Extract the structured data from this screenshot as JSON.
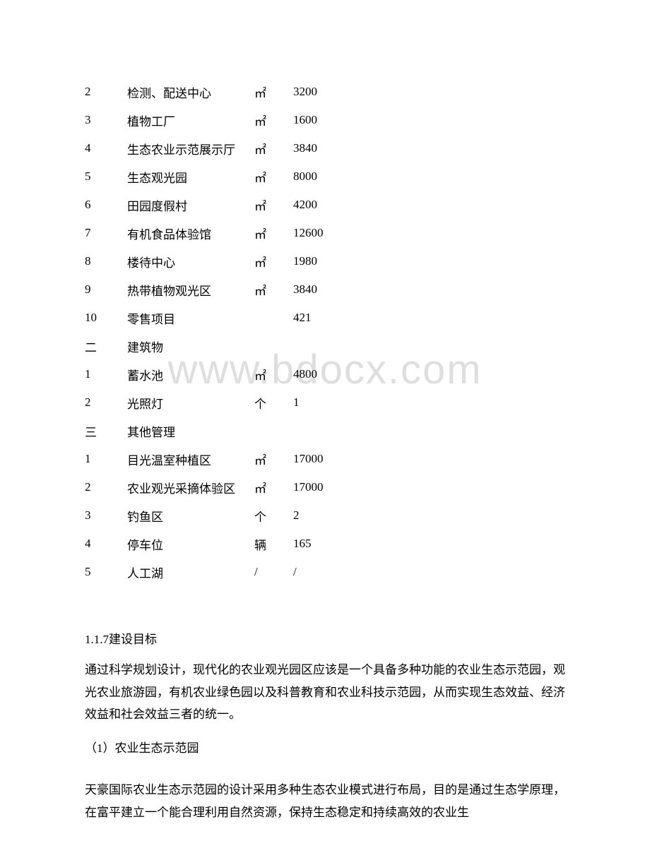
{
  "watermark": "www.bdocx.com",
  "table": {
    "rows": [
      {
        "num": "2",
        "name": "检测、配送中心",
        "unit": "㎡",
        "value": "3200"
      },
      {
        "num": "3",
        "name": "植物工厂",
        "unit": "㎡",
        "value": "1600"
      },
      {
        "num": "4",
        "name": "生态农业示范展示厅",
        "unit": "㎡",
        "value": "3840"
      },
      {
        "num": "5",
        "name": "生态观光园",
        "unit": "㎡",
        "value": "8000"
      },
      {
        "num": "6",
        "name": "田园度假村",
        "unit": "㎡",
        "value": "4200"
      },
      {
        "num": "7",
        "name": "有机食品体验馆",
        "unit": "㎡",
        "value": "12600"
      },
      {
        "num": "8",
        "name": "楼待中心",
        "unit": "㎡",
        "value": "1980"
      },
      {
        "num": "9",
        "name": "热带植物观光区",
        "unit": "㎡",
        "value": "3840"
      },
      {
        "num": "10",
        "name": "零售项目",
        "unit": "",
        "value": "421"
      },
      {
        "num": "二",
        "name": "建筑物",
        "unit": "",
        "value": ""
      },
      {
        "num": "1",
        "name": "蓄水池",
        "unit": "㎡",
        "value": "4800"
      },
      {
        "num": "2",
        "name": "光照灯",
        "unit": "个",
        "value": "1"
      },
      {
        "num": "三",
        "name": "其他管理",
        "unit": "",
        "value": ""
      },
      {
        "num": "1",
        "name": "目光温室种植区",
        "unit": "㎡",
        "value": "17000"
      },
      {
        "num": "2",
        "name": "农业观光采摘体验区",
        "unit": "㎡",
        "value": "17000"
      },
      {
        "num": "3",
        "name": "钓鱼区",
        "unit": "个",
        "value": "2"
      },
      {
        "num": "4",
        "name": "停车位",
        "unit": "辆",
        "value": "165"
      },
      {
        "num": "5",
        "name": "人工湖",
        "unit": "/",
        "value": "/"
      }
    ]
  },
  "text": {
    "heading": "1.1.7建设目标",
    "paragraph1": "通过科学规划设计，现代化的农业观光园区应该是一个具备多种功能的农业生态示范园，观光农业旅游园，有机农业绿色园以及科普教育和农业科技示范园，从而实现生态效益、经济效益和社会效益三者的统一。",
    "subheading": "（1）农业生态示范园",
    "paragraph2": "天豪国际农业生态示范园的设计采用多种生态农业模式进行布局，目的是通过生态学原理，在富平建立一个能合理利用自然资源，保持生态稳定和持续高效的农业生"
  }
}
